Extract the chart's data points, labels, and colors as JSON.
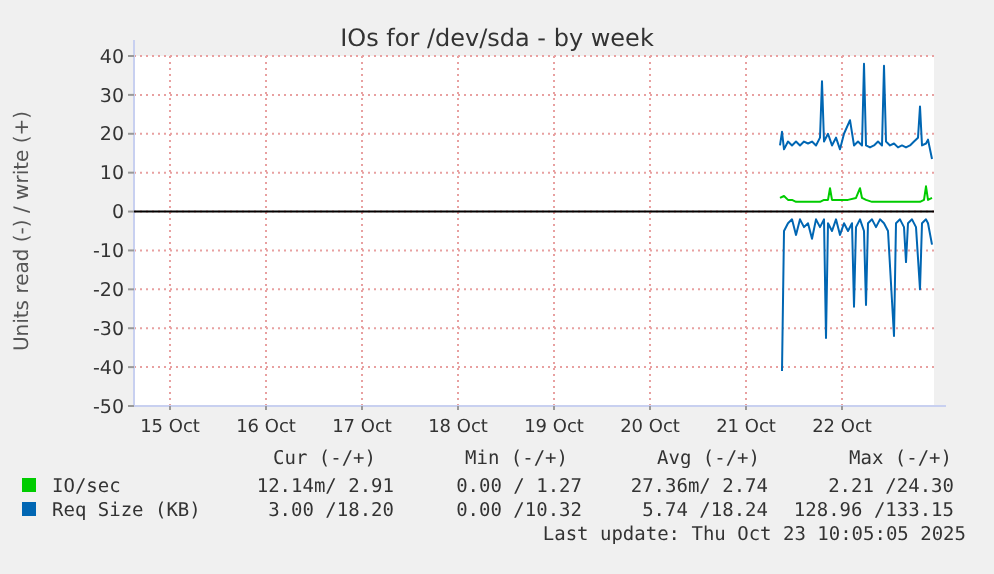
{
  "chart_data": {
    "type": "line",
    "title": "IOs for /dev/sda - by week",
    "ylabel": "Units read (-) / write (+)",
    "xlim": [
      "2025-10-15T03:00",
      "2025-10-23T11:00"
    ],
    "xticks": [
      {
        "value": "2025-10-15T12:00",
        "label": "15 Oct"
      },
      {
        "value": "2025-10-16T12:00",
        "label": "16 Oct"
      },
      {
        "value": "2025-10-17T12:00",
        "label": "17 Oct"
      },
      {
        "value": "2025-10-18T12:00",
        "label": "18 Oct"
      },
      {
        "value": "2025-10-19T12:00",
        "label": "19 Oct"
      },
      {
        "value": "2025-10-20T12:00",
        "label": "20 Oct"
      },
      {
        "value": "2025-10-21T12:00",
        "label": "21 Oct"
      },
      {
        "value": "2025-10-22T12:00",
        "label": "22 Oct"
      }
    ],
    "ylim": [
      -50,
      40
    ],
    "yticks": [
      -50,
      -40,
      -30,
      -20,
      -10,
      0,
      10,
      20,
      30,
      40
    ],
    "grid": true,
    "legend": "bottom",
    "line_style": "solid",
    "marker": "none",
    "ref_lines": [
      {
        "axis": "y",
        "value": 0,
        "color": "#000000"
      }
    ],
    "series": [
      {
        "name": "IO/sec",
        "color": "#00cc00",
        "x": [
          "2025-10-21T20:30",
          "2025-10-21T21:30",
          "2025-10-21T22:30",
          "2025-10-21T23:30",
          "2025-10-22T00:30",
          "2025-10-22T02:30",
          "2025-10-22T04:30",
          "2025-10-22T06:30",
          "2025-10-22T07:30",
          "2025-10-22T08:30",
          "2025-10-22T09:00",
          "2025-10-22T09:30",
          "2025-10-22T11:30",
          "2025-10-22T13:30",
          "2025-10-22T15:30",
          "2025-10-22T16:30",
          "2025-10-22T17:00",
          "2025-10-22T18:00",
          "2025-10-22T19:30",
          "2025-10-22T21:30",
          "2025-10-22T23:30",
          "2025-10-23T01:30",
          "2025-10-23T03:30",
          "2025-10-23T05:30",
          "2025-10-23T07:30",
          "2025-10-23T08:30",
          "2025-10-23T09:00",
          "2025-10-23T09:30",
          "2025-10-23T10:30"
        ],
        "values": [
          3.5,
          4,
          3,
          3,
          2.5,
          2.5,
          2.5,
          2.5,
          3,
          3,
          6,
          3,
          3,
          3,
          3.5,
          6,
          3.5,
          3,
          2.5,
          2.5,
          2.5,
          2.5,
          2.5,
          2.5,
          2.5,
          3,
          6.5,
          3,
          3.5
        ]
      },
      {
        "name": "Req Size (KB)",
        "color": "#0066b3",
        "x": [
          "2025-10-21T20:30",
          "2025-10-21T21:00",
          "2025-10-21T21:30",
          "2025-10-21T22:30",
          "2025-10-21T23:30",
          "2025-10-22T00:30",
          "2025-10-22T01:30",
          "2025-10-22T02:30",
          "2025-10-22T03:30",
          "2025-10-22T04:30",
          "2025-10-22T05:30",
          "2025-10-22T06:30",
          "2025-10-22T07:00",
          "2025-10-22T07:30",
          "2025-10-22T08:30",
          "2025-10-22T09:30",
          "2025-10-22T10:30",
          "2025-10-22T11:30",
          "2025-10-22T12:30",
          "2025-10-22T14:00",
          "2025-10-22T15:00",
          "2025-10-22T16:00",
          "2025-10-22T17:00",
          "2025-10-22T17:30",
          "2025-10-22T18:00",
          "2025-10-22T19:00",
          "2025-10-22T20:00",
          "2025-10-22T21:00",
          "2025-10-22T22:00",
          "2025-10-22T22:30",
          "2025-10-22T23:00",
          "2025-10-23T00:00",
          "2025-10-23T01:00",
          "2025-10-23T02:00",
          "2025-10-23T03:00",
          "2025-10-23T04:00",
          "2025-10-23T05:00",
          "2025-10-23T06:00",
          "2025-10-23T07:00",
          "2025-10-23T07:30",
          "2025-10-23T08:00",
          "2025-10-23T09:00",
          "2025-10-23T09:30",
          "2025-10-23T10:30"
        ],
        "values": [
          17,
          20.5,
          16,
          18,
          17,
          18,
          17,
          18,
          17.5,
          18,
          17,
          19,
          33.5,
          18,
          20,
          17,
          19,
          16,
          20,
          23.5,
          17,
          18,
          17,
          38,
          17,
          16.5,
          17,
          18,
          17,
          37.5,
          18,
          17,
          17.5,
          16.5,
          17,
          16.5,
          17,
          18,
          19,
          27,
          17,
          17.5,
          18.5,
          13.5
        ]
      },
      {
        "color": "#0066b3",
        "x": [
          "2025-10-21T21:00",
          "2025-10-21T21:30",
          "2025-10-21T22:30",
          "2025-10-21T23:30",
          "2025-10-22T00:30",
          "2025-10-22T01:30",
          "2025-10-22T02:30",
          "2025-10-22T03:30",
          "2025-10-22T04:30",
          "2025-10-22T05:30",
          "2025-10-22T06:30",
          "2025-10-22T07:30",
          "2025-10-22T08:00",
          "2025-10-22T08:30",
          "2025-10-22T09:30",
          "2025-10-22T10:30",
          "2025-10-22T11:30",
          "2025-10-22T12:30",
          "2025-10-22T13:30",
          "2025-10-22T14:30",
          "2025-10-22T15:00",
          "2025-10-22T15:30",
          "2025-10-22T16:30",
          "2025-10-22T17:30",
          "2025-10-22T18:00",
          "2025-10-22T18:30",
          "2025-10-22T19:30",
          "2025-10-22T20:30",
          "2025-10-22T21:30",
          "2025-10-22T22:30",
          "2025-10-22T23:30",
          "2025-10-23T01:00",
          "2025-10-23T01:30",
          "2025-10-23T02:30",
          "2025-10-23T03:30",
          "2025-10-23T04:00",
          "2025-10-23T04:30",
          "2025-10-23T05:30",
          "2025-10-23T06:30",
          "2025-10-23T07:30",
          "2025-10-23T08:00",
          "2025-10-23T09:00",
          "2025-10-23T09:30",
          "2025-10-23T10:30"
        ],
        "values": [
          -41,
          -5,
          -3,
          -2,
          -6,
          -2,
          -4,
          -3,
          -7,
          -2,
          -4,
          -2,
          -32.5,
          -3,
          -5,
          -2,
          -6,
          -3,
          -5,
          -3,
          -24.5,
          -4,
          -2,
          -5,
          -24,
          -3,
          -2,
          -4,
          -2,
          -3,
          -5,
          -32,
          -3,
          -2,
          -4,
          -13,
          -3,
          -2,
          -4,
          -20,
          -3,
          -2,
          -3,
          -8.5
        ]
      }
    ],
    "annotations": [
      "Cur (-/+)",
      "Min (-/+)",
      "Avg (-/+)",
      "Max (-/+)",
      "12.14m/ 2.91",
      "0.00 / 1.27",
      "27.36m/ 2.74",
      "2.21 /24.30",
      "3.00 /18.20",
      "0.00 /10.32",
      "5.74 /18.24",
      "128.96 /133.15",
      "Last update: Thu Oct 23 10:05:05 2025"
    ]
  }
}
